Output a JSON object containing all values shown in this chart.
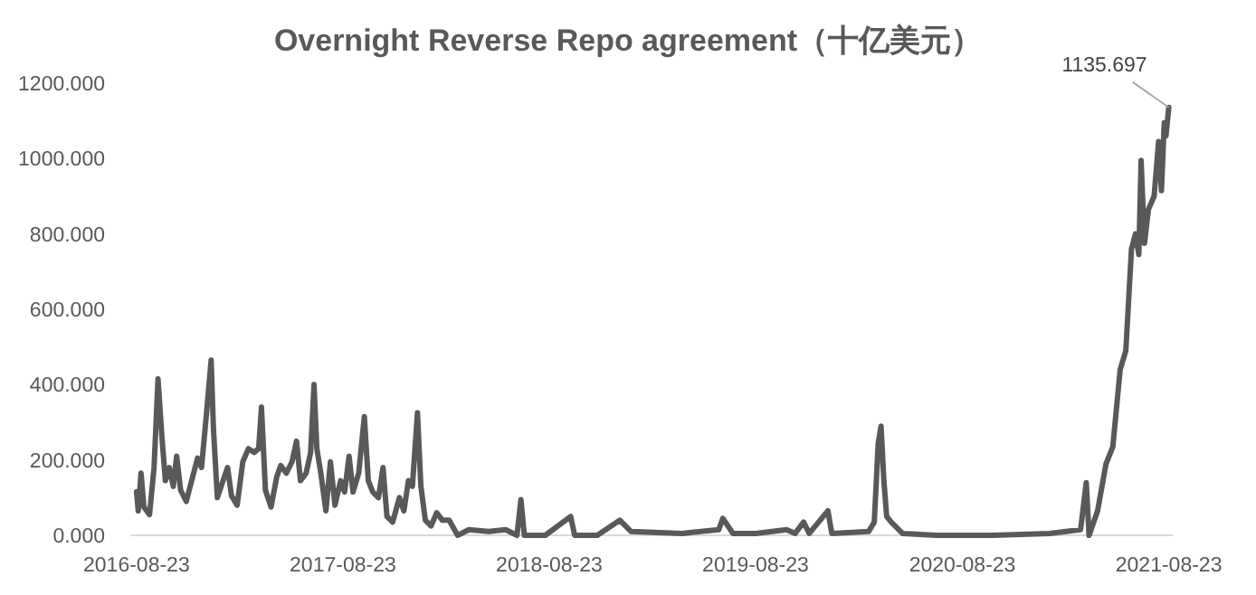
{
  "chart_data": {
    "type": "line",
    "title": "Overnight Reverse Repo  agreement（十亿美元）",
    "color": "#595959",
    "x": [
      "2016-08-23",
      "2016-08-26",
      "2016-08-31",
      "2016-09-05",
      "2016-09-15",
      "2016-09-23",
      "2016-09-30",
      "2016-10-07",
      "2016-10-13",
      "2016-10-20",
      "2016-10-27",
      "2016-11-02",
      "2016-11-09",
      "2016-11-19",
      "2016-12-02",
      "2016-12-09",
      "2016-12-16",
      "2016-12-24",
      "2017-01-02",
      "2017-01-06",
      "2017-01-13",
      "2017-01-23",
      "2017-01-31",
      "2017-02-07",
      "2017-02-17",
      "2017-02-27",
      "2017-03-09",
      "2017-03-19",
      "2017-03-27",
      "2017-04-01",
      "2017-04-08",
      "2017-04-18",
      "2017-04-28",
      "2017-05-05",
      "2017-05-15",
      "2017-05-25",
      "2017-06-02",
      "2017-06-09",
      "2017-06-19",
      "2017-06-27",
      "2017-07-03",
      "2017-07-08",
      "2017-07-15",
      "2017-07-24",
      "2017-08-01",
      "2017-08-09",
      "2017-08-19",
      "2017-08-26",
      "2017-09-03",
      "2017-09-10",
      "2017-09-20",
      "2017-09-30",
      "2017-10-07",
      "2017-10-15",
      "2017-10-25",
      "2017-11-02",
      "2017-11-09",
      "2017-11-19",
      "2017-12-01",
      "2017-12-09",
      "2017-12-17",
      "2017-12-24",
      "2018-01-02",
      "2018-01-08",
      "2018-01-16",
      "2018-01-26",
      "2018-02-05",
      "2018-02-15",
      "2018-02-27",
      "2018-03-14",
      "2018-04-03",
      "2018-05-08",
      "2018-06-07",
      "2018-06-27",
      "2018-07-04",
      "2018-07-10",
      "2018-08-16",
      "2018-09-30",
      "2018-10-07",
      "2018-11-16",
      "2018-12-26",
      "2019-01-15",
      "2019-04-15",
      "2019-06-19",
      "2019-06-26",
      "2019-07-14",
      "2019-08-23",
      "2019-10-17",
      "2019-11-01",
      "2019-11-16",
      "2019-11-26",
      "2019-12-29",
      "2020-01-05",
      "2020-03-10",
      "2020-03-20",
      "2020-03-27",
      "2020-04-01",
      "2020-04-06",
      "2020-04-11",
      "2020-04-19",
      "2020-05-09",
      "2020-07-08",
      "2020-10-16",
      "2021-01-24",
      "2021-03-20",
      "2021-03-30",
      "2021-04-04",
      "2021-04-19",
      "2021-05-04",
      "2021-05-16",
      "2021-05-29",
      "2021-06-08",
      "2021-06-18",
      "2021-06-25",
      "2021-07-01",
      "2021-07-05",
      "2021-07-11",
      "2021-07-18",
      "2021-07-28",
      "2021-08-05",
      "2021-08-10",
      "2021-08-15",
      "2021-08-18",
      "2021-08-23"
    ],
    "values": [
      115,
      65,
      165,
      75,
      55,
      180,
      415,
      260,
      145,
      180,
      130,
      210,
      120,
      90,
      165,
      205,
      180,
      310,
      465,
      285,
      100,
      145,
      180,
      105,
      80,
      195,
      230,
      220,
      230,
      340,
      120,
      75,
      155,
      185,
      165,
      195,
      250,
      145,
      165,
      220,
      400,
      230,
      165,
      65,
      195,
      80,
      145,
      115,
      210,
      115,
      165,
      315,
      145,
      115,
      100,
      180,
      50,
      35,
      100,
      65,
      145,
      130,
      325,
      130,
      40,
      25,
      60,
      40,
      40,
      0,
      15,
      10,
      15,
      0,
      95,
      0,
      0,
      50,
      0,
      0,
      40,
      10,
      5,
      15,
      45,
      5,
      5,
      15,
      5,
      35,
      5,
      65,
      5,
      10,
      35,
      245,
      290,
      145,
      50,
      35,
      5,
      0,
      0,
      5,
      15,
      140,
      0,
      65,
      190,
      235,
      440,
      490,
      760,
      800,
      745,
      995,
      775,
      865,
      900,
      1045,
      915,
      1095,
      1060,
      1135.697
    ],
    "xlim": [
      "2016-08-12",
      "2021-08-30"
    ],
    "ylim": [
      0,
      1200
    ],
    "yticks": [
      {
        "value": 0,
        "label": "0.000"
      },
      {
        "value": 200,
        "label": "200.000"
      },
      {
        "value": 400,
        "label": "400.000"
      },
      {
        "value": 600,
        "label": "600.000"
      },
      {
        "value": 800,
        "label": "800.000"
      },
      {
        "value": 1000,
        "label": "1000.000"
      },
      {
        "value": 1200,
        "label": "1200.000"
      }
    ],
    "xticks": [
      {
        "value": "2016-08-23",
        "label": "2016-08-23"
      },
      {
        "value": "2017-08-23",
        "label": "2017-08-23"
      },
      {
        "value": "2018-08-23",
        "label": "2018-08-23"
      },
      {
        "value": "2019-08-23",
        "label": "2019-08-23"
      },
      {
        "value": "2020-08-23",
        "label": "2020-08-23"
      },
      {
        "value": "2021-08-23",
        "label": "2021-08-23"
      }
    ],
    "annotations": [
      {
        "text": "1135.697",
        "x": "2021-08-23",
        "y": 1135.697
      }
    ]
  }
}
